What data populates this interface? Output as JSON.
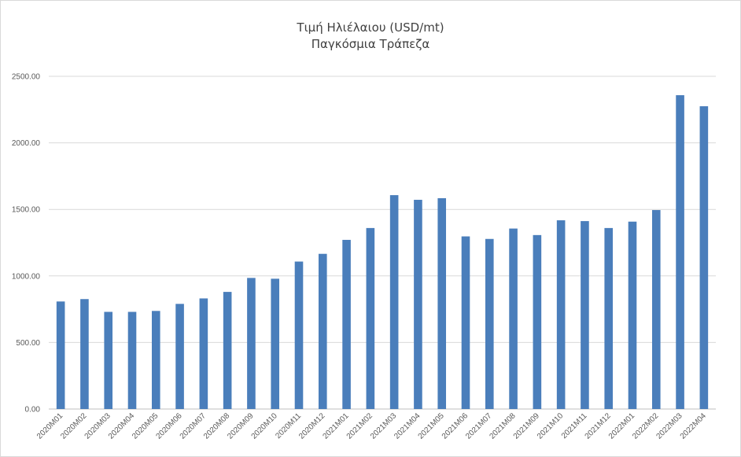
{
  "chart_data": {
    "type": "bar",
    "title": "Τιμή Ηλιέλαιου (USD/mt)",
    "subtitle": "Παγκόσμια Τράπεζα",
    "xlabel": "",
    "ylabel": "",
    "ylim": [
      0,
      2500
    ],
    "yticks": [
      "0.00",
      "500.00",
      "1000.00",
      "1500.00",
      "2000.00",
      "2500.00"
    ],
    "grid": true,
    "legend": "none",
    "bar_color": "#4a7ebb",
    "categories": [
      "2020M01",
      "2020M02",
      "2020M03",
      "2020M04",
      "2020M05",
      "2020M06",
      "2020M07",
      "2020M08",
      "2020M09",
      "2020M10",
      "2020M11",
      "2020M12",
      "2021M01",
      "2021M02",
      "2021M03",
      "2021M04",
      "2021M05",
      "2021M06",
      "2021M07",
      "2021M08",
      "2021M09",
      "2021M10",
      "2021M11",
      "2021M12",
      "2022M01",
      "2022M02",
      "2022M03",
      "2022M04"
    ],
    "values": [
      808,
      826,
      730,
      730,
      737,
      790,
      831,
      880,
      985,
      979,
      1108,
      1166,
      1271,
      1360,
      1607,
      1572,
      1584,
      1297,
      1278,
      1356,
      1307,
      1418,
      1412,
      1360,
      1408,
      1495,
      2358,
      2275
    ]
  }
}
